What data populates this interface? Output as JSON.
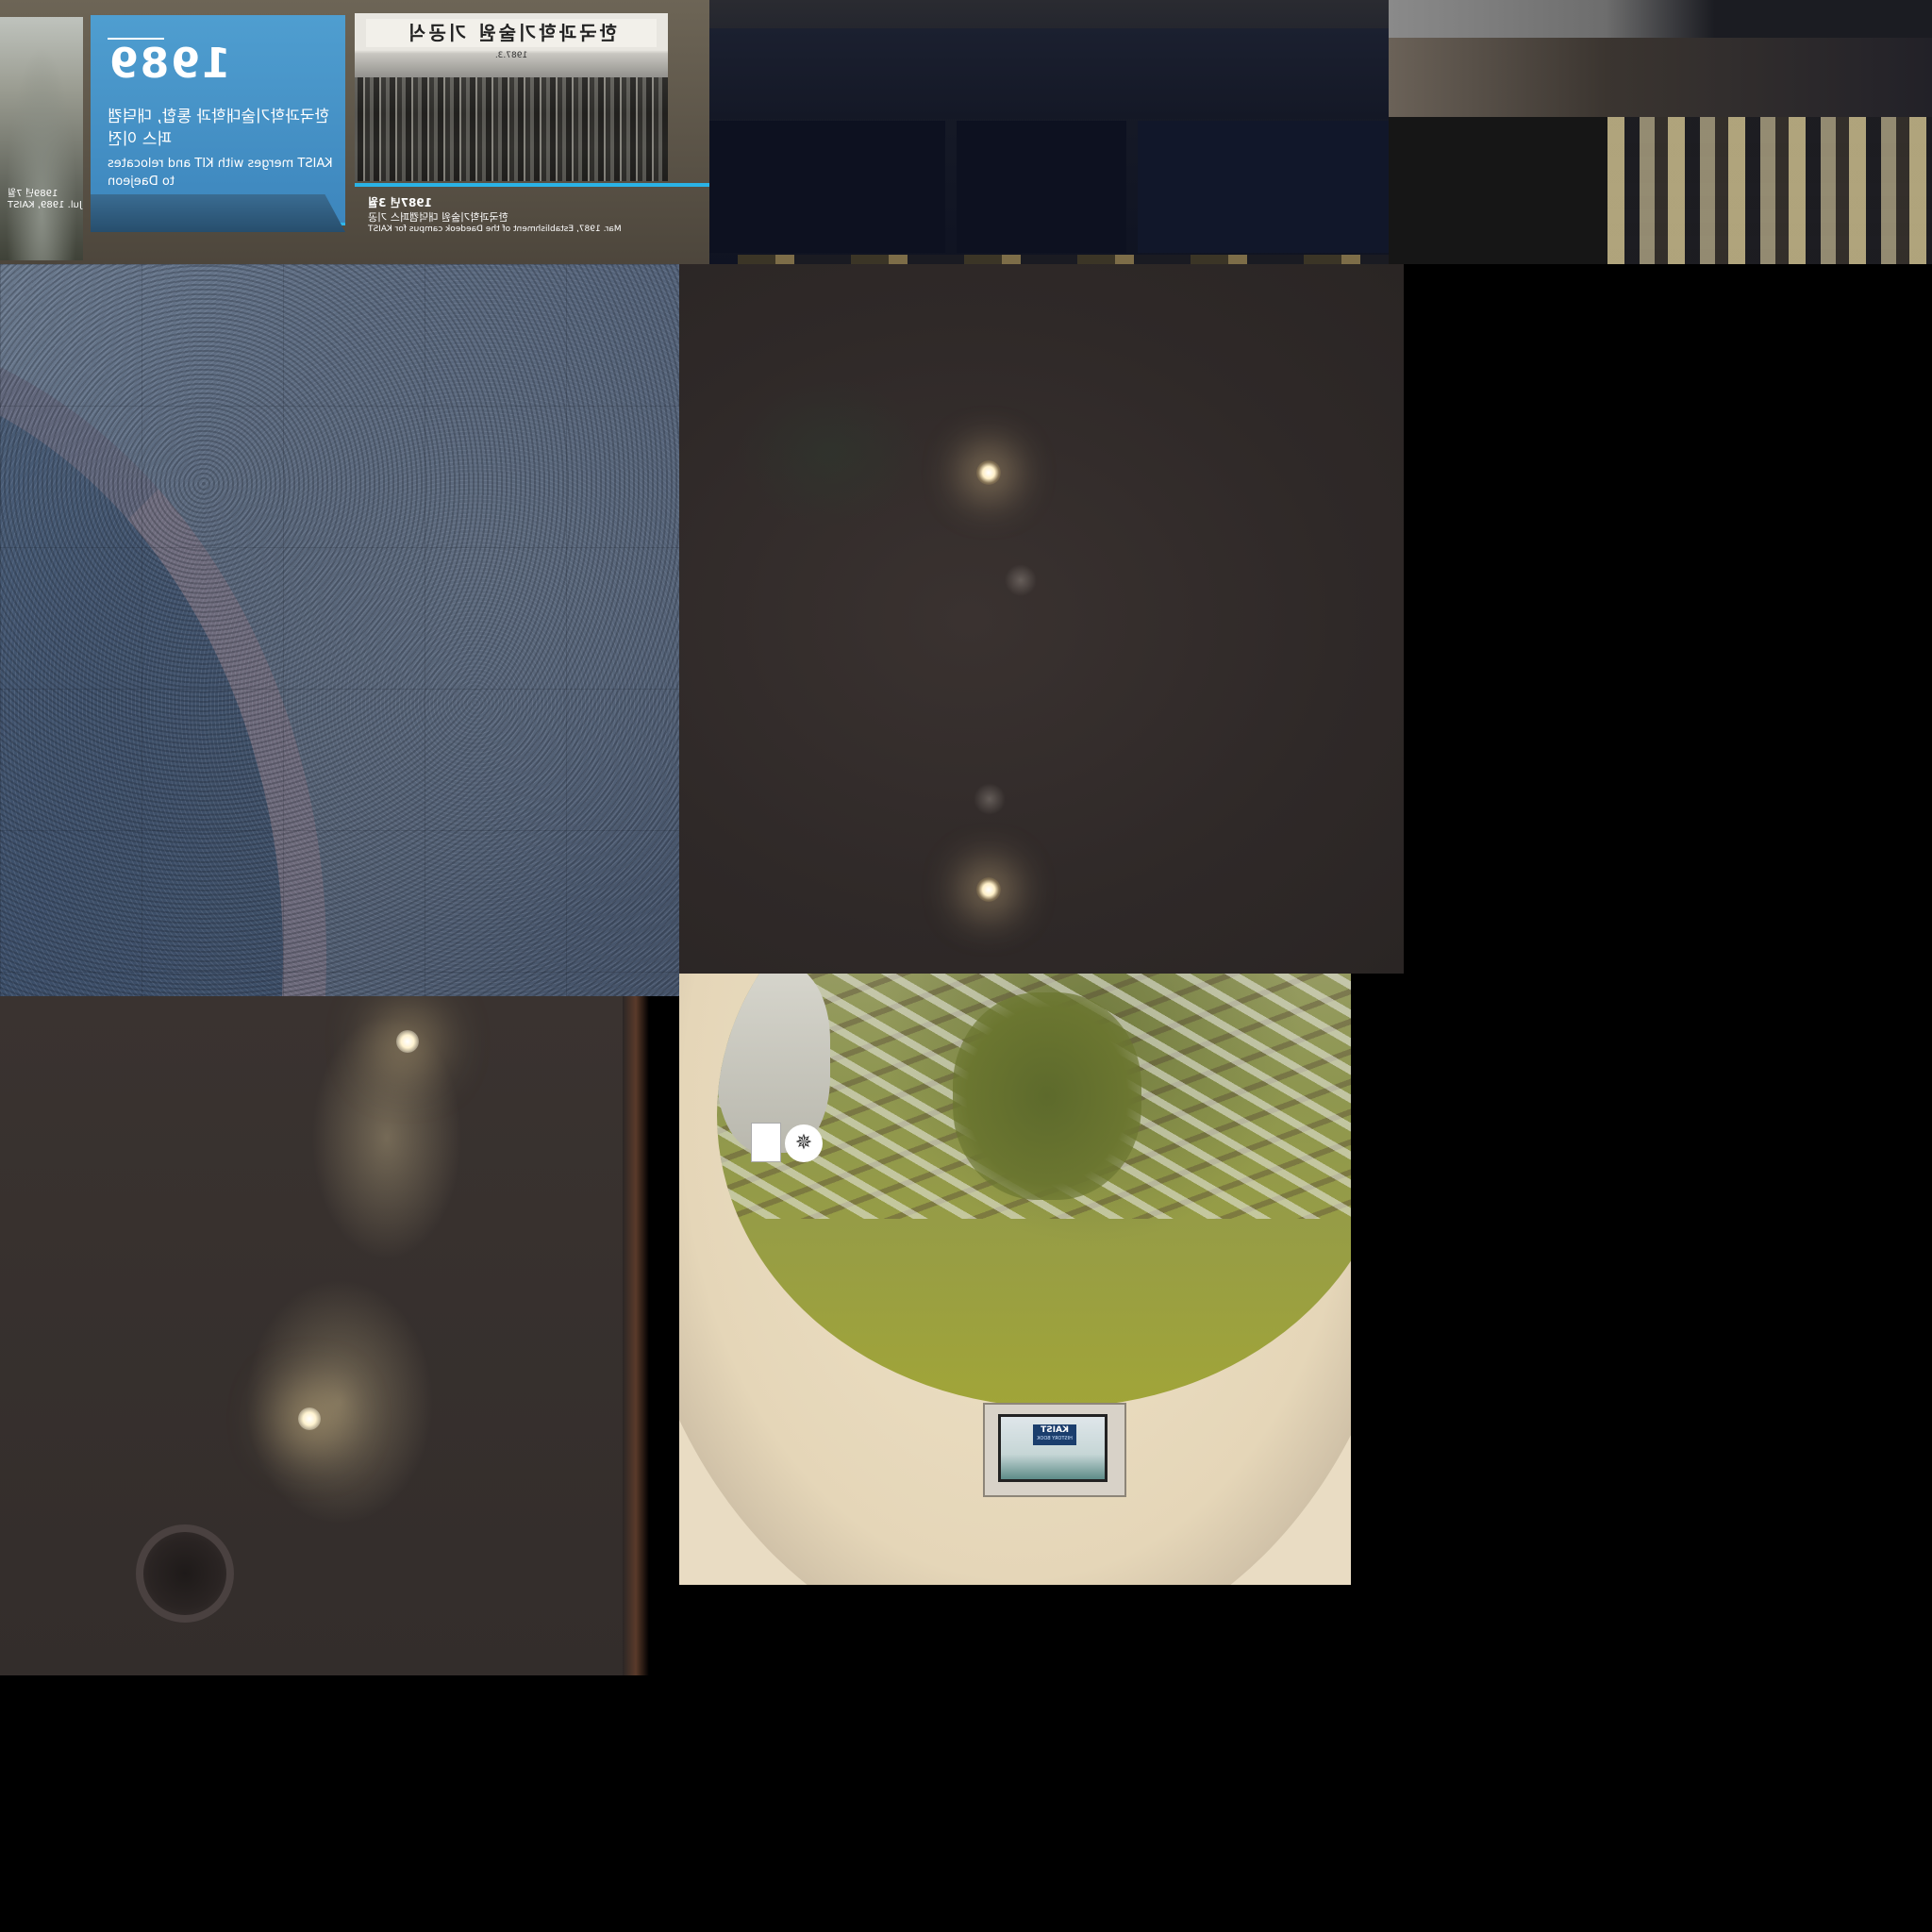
{
  "exhibit": {
    "year": "1989",
    "title_kr": "한국과학기술대학과 통합, 대덕캠퍼스 이전",
    "title_en": "KAIST merges with KIT and relocates to Daejeon",
    "banner_kr": "한국과학기술원 기공식",
    "banner_date": "1987.3.",
    "caption_date": "1987년 3월",
    "caption_kr": "한국과학기술원 대덕캠퍼스 기공",
    "caption_en": "Mar. 1987, Establishment of the Daedeok campus for KAIST",
    "side_caption_kr": "1989년 7월",
    "side_caption_en": "Jul. 1989, KAIST"
  },
  "kiosk": {
    "logo": "KAIST",
    "subtitle": "HISTORY BOOK"
  },
  "model": {
    "compass_mark": "N"
  },
  "colors": {
    "panel_blue": "#3d86bd",
    "accent_cyan": "#2ab3e6",
    "model_green": "#8e9650",
    "ring_cream": "#e9dcc3"
  }
}
